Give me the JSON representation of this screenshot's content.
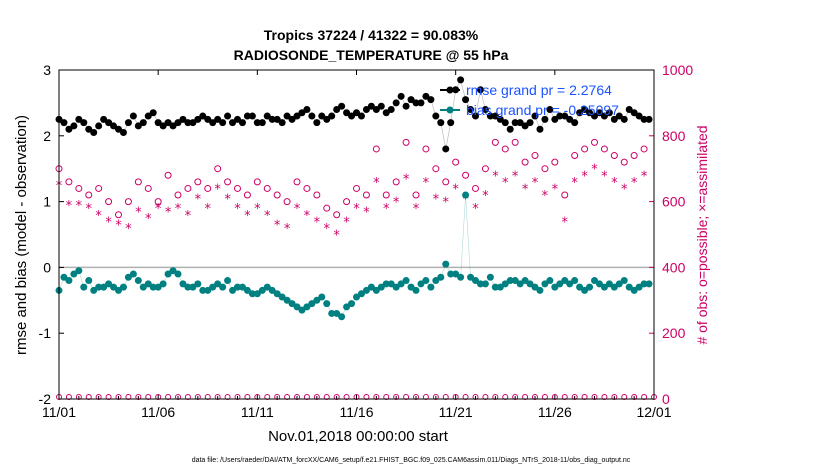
{
  "chart_data": {
    "type": "line",
    "title": "Tropics 37224 / 41322 = 90.083%",
    "subtitle": "RADIOSONDE_TEMPERATURE @ 55 hPa",
    "xlabel": "Nov.01,2018 00:00:00 start",
    "ylabel": "rmse and bias (model - observation)",
    "ylabel_right": "# of obs: o=possible; ×=assimilated",
    "x_ticks": [
      "11/01",
      "11/06",
      "11/11",
      "11/16",
      "11/21",
      "11/26",
      "12/01"
    ],
    "y_ticks": [
      "-2",
      "-1",
      "0",
      "1",
      "2",
      "3"
    ],
    "y_ticks_right": [
      "0",
      "200",
      "400",
      "600",
      "800",
      "1000"
    ],
    "xlim": [
      0,
      30
    ],
    "ylim": [
      -2,
      3
    ],
    "ylim_right": [
      0,
      1000
    ],
    "footnote": "data file: /Users/raeder/DAI/ATM_forcXX/CAM6_setup/f.e21.FHIST_BGC.f09_025.CAM6assim.011/Diags_NTrS_2018-11/obs_diag_output.nc",
    "series": [
      {
        "name": "rmse grand pr = 2.2764",
        "color": "#000000",
        "x": [
          0,
          0.25,
          0.5,
          0.75,
          1,
          1.25,
          1.5,
          1.75,
          2,
          2.25,
          2.5,
          2.75,
          3,
          3.25,
          3.5,
          3.75,
          4,
          4.25,
          4.5,
          4.75,
          5,
          5.25,
          5.5,
          5.75,
          6,
          6.25,
          6.5,
          6.75,
          7,
          7.25,
          7.5,
          7.75,
          8,
          8.25,
          8.5,
          8.75,
          9,
          9.25,
          9.5,
          9.75,
          10,
          10.25,
          10.5,
          10.75,
          11,
          11.25,
          11.5,
          11.75,
          12,
          12.25,
          12.5,
          12.75,
          13,
          13.25,
          13.5,
          13.75,
          14,
          14.25,
          14.5,
          14.75,
          15,
          15.25,
          15.5,
          15.75,
          16,
          16.25,
          16.5,
          16.75,
          17,
          17.25,
          17.5,
          17.75,
          18,
          18.25,
          18.5,
          18.75,
          19,
          19.25,
          19.5,
          19.75,
          20,
          20.25,
          20.5,
          20.75,
          21,
          21.25,
          21.5,
          21.75,
          22,
          22.25,
          22.5,
          22.75,
          23,
          23.25,
          23.5,
          23.75,
          24,
          24.25,
          24.5,
          24.75,
          25,
          25.25,
          25.5,
          25.75,
          26,
          26.25,
          26.5,
          26.75,
          27,
          27.25,
          27.5,
          27.75,
          28,
          28.25,
          28.5,
          28.75,
          29,
          29.25,
          29.5,
          29.75
        ],
        "values": [
          2.25,
          2.2,
          2.1,
          2.15,
          2.25,
          2.2,
          2.1,
          2.05,
          2.15,
          2.25,
          2.2,
          2.15,
          2.1,
          2.05,
          2.2,
          2.3,
          2.15,
          2.2,
          2.3,
          2.35,
          2.2,
          2.15,
          2.2,
          2.15,
          2.2,
          2.25,
          2.2,
          2.2,
          2.25,
          2.3,
          2.25,
          2.2,
          2.25,
          2.2,
          2.3,
          2.2,
          2.25,
          2.2,
          2.3,
          2.3,
          2.2,
          2.2,
          2.3,
          2.25,
          2.25,
          2.2,
          2.3,
          2.25,
          2.3,
          2.35,
          2.4,
          2.3,
          2.2,
          2.3,
          2.25,
          2.3,
          2.4,
          2.45,
          2.35,
          2.3,
          2.35,
          2.3,
          2.4,
          2.45,
          2.4,
          2.45,
          2.35,
          2.4,
          2.5,
          2.6,
          2.45,
          2.55,
          2.5,
          2.5,
          2.6,
          2.55,
          2.3,
          2.2,
          1.8,
          2.2,
          2.7,
          2.85,
          2.55,
          2.4,
          2.3,
          2.7,
          2.4,
          2.3,
          2.3,
          2.25,
          2.2,
          2.1,
          2.2,
          2.2,
          2.15,
          2.2,
          2.3,
          2.1,
          2.25,
          2.4,
          2.25,
          2.3,
          2.3,
          2.25,
          2.2,
          2.35,
          2.4,
          2.35,
          2.3,
          2.35,
          2.3,
          2.35,
          2.25,
          2.3,
          2.25,
          2.4,
          2.35,
          2.3,
          2.25,
          2.25
        ]
      },
      {
        "name": "bias grand pr = -0.25097",
        "color": "#008080",
        "x": [
          0,
          0.25,
          0.5,
          0.75,
          1,
          1.25,
          1.5,
          1.75,
          2,
          2.25,
          2.5,
          2.75,
          3,
          3.25,
          3.5,
          3.75,
          4,
          4.25,
          4.5,
          4.75,
          5,
          5.25,
          5.5,
          5.75,
          6,
          6.25,
          6.5,
          6.75,
          7,
          7.25,
          7.5,
          7.75,
          8,
          8.25,
          8.5,
          8.75,
          9,
          9.25,
          9.5,
          9.75,
          10,
          10.25,
          10.5,
          10.75,
          11,
          11.25,
          11.5,
          11.75,
          12,
          12.25,
          12.5,
          12.75,
          13,
          13.25,
          13.5,
          13.75,
          14,
          14.25,
          14.5,
          14.75,
          15,
          15.25,
          15.5,
          15.75,
          16,
          16.25,
          16.5,
          16.75,
          17,
          17.25,
          17.5,
          17.75,
          18,
          18.25,
          18.5,
          18.75,
          19,
          19.25,
          19.5,
          19.75,
          20,
          20.25,
          20.5,
          20.75,
          21,
          21.25,
          21.5,
          21.75,
          22,
          22.25,
          22.5,
          22.75,
          23,
          23.25,
          23.5,
          23.75,
          24,
          24.25,
          24.5,
          24.75,
          25,
          25.25,
          25.5,
          25.75,
          26,
          26.25,
          26.5,
          26.75,
          27,
          27.25,
          27.5,
          27.75,
          28,
          28.25,
          28.5,
          28.75,
          29,
          29.25,
          29.5,
          29.75
        ],
        "values": [
          -0.35,
          -0.15,
          -0.2,
          -0.1,
          -0.05,
          -0.3,
          -0.2,
          -0.35,
          -0.3,
          -0.3,
          -0.25,
          -0.3,
          -0.35,
          -0.3,
          -0.15,
          -0.1,
          -0.2,
          -0.3,
          -0.25,
          -0.3,
          -0.3,
          -0.25,
          -0.1,
          -0.05,
          -0.1,
          -0.25,
          -0.3,
          -0.3,
          -0.25,
          -0.35,
          -0.35,
          -0.3,
          -0.25,
          -0.3,
          -0.2,
          -0.35,
          -0.3,
          -0.3,
          -0.35,
          -0.4,
          -0.4,
          -0.35,
          -0.3,
          -0.35,
          -0.4,
          -0.45,
          -0.5,
          -0.55,
          -0.6,
          -0.65,
          -0.6,
          -0.55,
          -0.5,
          -0.45,
          -0.55,
          -0.7,
          -0.7,
          -0.75,
          -0.6,
          -0.55,
          -0.45,
          -0.4,
          -0.35,
          -0.3,
          -0.35,
          -0.3,
          -0.25,
          -0.25,
          -0.3,
          -0.25,
          -0.2,
          -0.3,
          -0.35,
          -0.25,
          -0.2,
          -0.3,
          -0.2,
          -0.15,
          0.05,
          -0.1,
          -0.1,
          -0.15,
          1.1,
          -0.15,
          -0.2,
          -0.25,
          -0.25,
          -0.15,
          -0.3,
          -0.3,
          -0.25,
          -0.2,
          -0.2,
          -0.25,
          -0.2,
          -0.25,
          -0.3,
          -0.35,
          -0.25,
          -0.2,
          -0.3,
          -0.25,
          -0.2,
          -0.25,
          -0.2,
          -0.3,
          -0.35,
          -0.3,
          -0.2,
          -0.25,
          -0.3,
          -0.25,
          -0.3,
          -0.25,
          -0.2,
          -0.3,
          -0.35,
          -0.3,
          -0.25,
          -0.25
        ]
      },
      {
        "name": "possible",
        "color": "#cc0066",
        "axis": "right",
        "x": [
          0,
          0.5,
          1,
          1.5,
          2,
          2.5,
          3,
          3.5,
          4,
          4.5,
          5,
          5.5,
          6,
          6.5,
          7,
          7.5,
          8,
          8.5,
          9,
          9.5,
          10,
          10.5,
          11,
          11.5,
          12,
          12.5,
          13,
          13.5,
          14,
          14.5,
          15,
          15.5,
          16,
          16.5,
          17,
          17.5,
          18,
          18.5,
          19,
          19.5,
          20,
          20.5,
          21,
          21.5,
          22,
          22.5,
          23,
          23.5,
          24,
          24.5,
          25,
          25.5,
          26,
          26.5,
          27,
          27.5,
          28,
          28.5,
          29,
          29.5
        ],
        "values": [
          700,
          660,
          640,
          620,
          640,
          600,
          560,
          600,
          660,
          640,
          600,
          680,
          620,
          640,
          660,
          640,
          700,
          660,
          640,
          620,
          660,
          640,
          620,
          600,
          660,
          640,
          620,
          580,
          560,
          600,
          640,
          620,
          760,
          620,
          660,
          780,
          620,
          760,
          700,
          660,
          720,
          680,
          640,
          700,
          780,
          760,
          780,
          720,
          740,
          700,
          720,
          620,
          740,
          760,
          780,
          760,
          740,
          720,
          740,
          760
        ]
      },
      {
        "name": "assimilated",
        "color": "#cc0066",
        "axis": "right",
        "x": [
          0,
          0.5,
          1,
          1.5,
          2,
          2.5,
          3,
          3.5,
          4,
          4.5,
          5,
          5.5,
          6,
          6.5,
          7,
          7.5,
          8,
          8.5,
          9,
          9.5,
          10,
          10.5,
          11,
          11.5,
          12,
          12.5,
          13,
          13.5,
          14,
          14.5,
          15,
          15.5,
          16,
          16.5,
          17,
          17.5,
          18,
          18.5,
          19,
          19.5,
          20,
          20.5,
          21,
          21.5,
          22,
          22.5,
          23,
          23.5,
          24,
          24.5,
          25,
          25.5,
          26,
          26.5,
          27,
          27.5,
          28,
          28.5,
          29,
          29.5
        ],
        "values": [
          650,
          590,
          590,
          580,
          560,
          540,
          530,
          520,
          570,
          550,
          580,
          570,
          580,
          560,
          610,
          580,
          640,
          610,
          580,
          560,
          580,
          560,
          530,
          520,
          580,
          560,
          540,
          520,
          500,
          540,
          580,
          570,
          660,
          580,
          600,
          670,
          580,
          660,
          610,
          600,
          640,
          610,
          580,
          620,
          680,
          660,
          680,
          640,
          660,
          620,
          640,
          540,
          660,
          680,
          700,
          680,
          660,
          640,
          660,
          680
        ]
      }
    ]
  }
}
